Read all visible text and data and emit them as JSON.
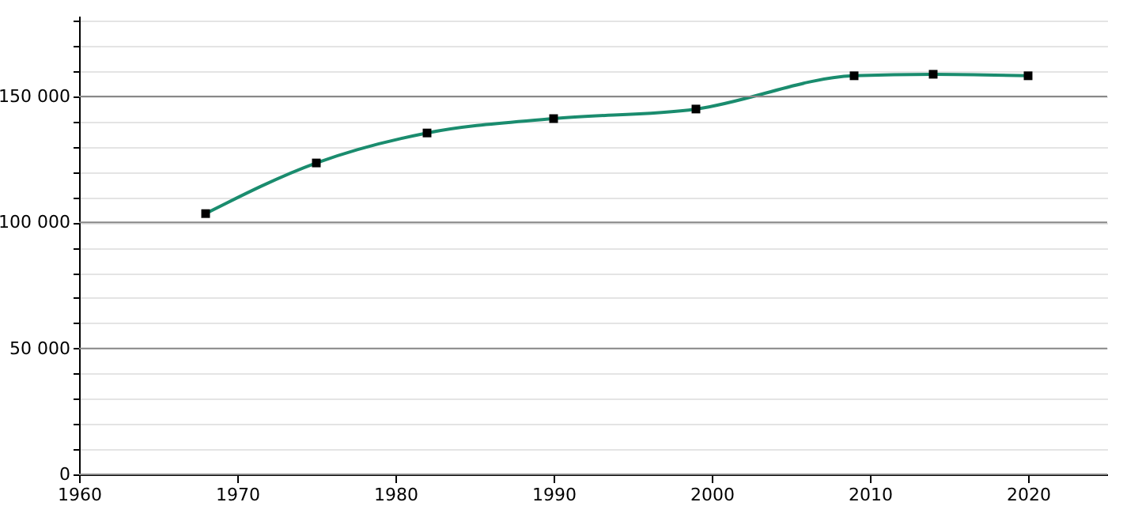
{
  "chart_data": {
    "type": "line",
    "marker": "square",
    "line_style": "solid",
    "grid": "y",
    "x": [
      1968,
      1975,
      1982,
      1990,
      1999,
      2009,
      2014,
      2020
    ],
    "series": [
      {
        "color": "#1a8c6e",
        "values": [
          103500,
          123600,
          135500,
          141200,
          145000,
          158200,
          158800,
          158200
        ]
      }
    ],
    "xlim": [
      1960,
      2025
    ],
    "xticks": [
      1960,
      1970,
      1980,
      1990,
      2000,
      2010,
      2020
    ],
    "ylim": [
      0,
      182000
    ],
    "yticks": [
      0,
      {
        "value": 10000,
        "label": null
      },
      {
        "value": 20000,
        "label": null
      },
      {
        "value": 30000,
        "label": null
      },
      {
        "value": 40000,
        "label": null
      },
      {
        "value": 50000,
        "label": "50 000"
      },
      {
        "value": 60000,
        "label": null
      },
      {
        "value": 70000,
        "label": null
      },
      {
        "value": 80000,
        "label": null
      },
      {
        "value": 90000,
        "label": null
      },
      {
        "value": 100000,
        "label": "100 000"
      },
      {
        "value": 110000,
        "label": null
      },
      {
        "value": 120000,
        "label": null
      },
      {
        "value": 130000,
        "label": null
      },
      {
        "value": 140000,
        "label": null
      },
      {
        "value": 150000,
        "label": "150 000"
      },
      {
        "value": 160000,
        "label": null
      },
      {
        "value": 170000,
        "label": null
      },
      {
        "value": 180000,
        "label": null
      }
    ]
  }
}
